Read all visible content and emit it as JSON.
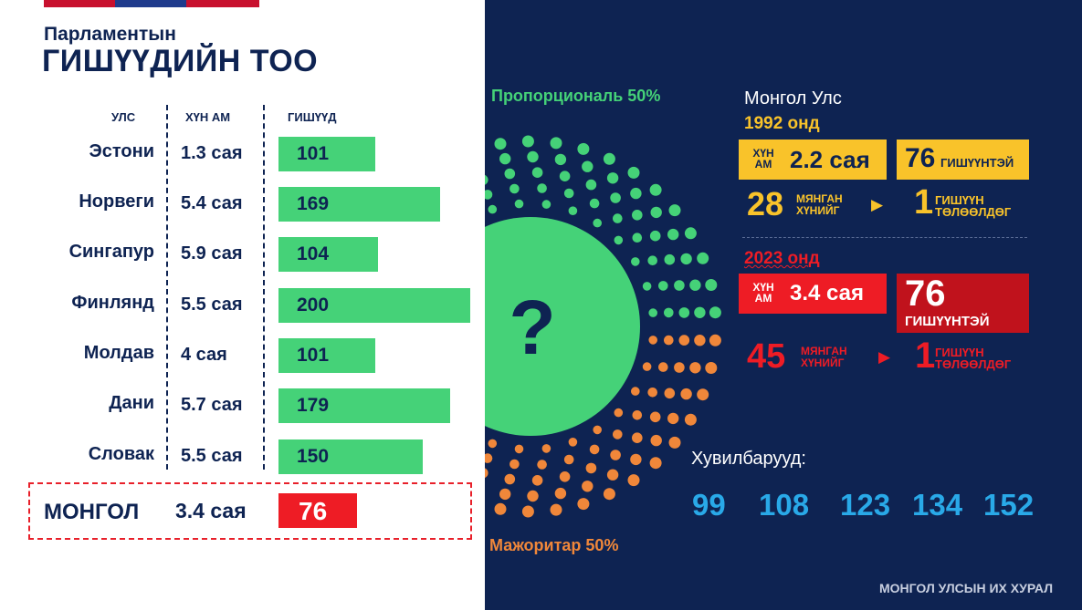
{
  "header": {
    "title_small": "Парламентын",
    "title_big": "ГИШҮҮДИЙН ТОО"
  },
  "table": {
    "col_country": "УЛС",
    "col_population": "ХҮН АМ",
    "col_members": "ГИШҮҮД"
  },
  "chart_data": {
    "type": "bar",
    "title": "Парламентын ГИШҮҮДИЙН ТОО",
    "categories": [
      "Эстони",
      "Норвеги",
      "Сингапур",
      "Финлянд",
      "Молдав",
      "Дани",
      "Словак"
    ],
    "population_labels": [
      "1.3 сая",
      "5.4 сая",
      "5.9 сая",
      "5.5 сая",
      "4 сая",
      "5.7 сая",
      "5.5 сая"
    ],
    "values": [
      101,
      169,
      104,
      200,
      101,
      179,
      150
    ],
    "xlim": [
      0,
      200
    ],
    "orientation": "horizontal",
    "bar_color": "#45d278",
    "highlight": {
      "category": "МОНГОЛ",
      "population_label": "3.4 сая",
      "value": 76,
      "color": "#ee1c25"
    }
  },
  "diagram": {
    "label_top": "Пропорциональ 50%",
    "label_bottom": "Мажоритар 50%",
    "center_symbol": "?",
    "green": "#45d278",
    "orange": "#f0873a"
  },
  "info": {
    "country_title": "Монгол Улс",
    "y1992": {
      "year_label": "1992 онд",
      "pop_label": "ХҮН АМ",
      "pop_value": "2.2 сая",
      "members_number": "76",
      "members_word": "ГИШҮҮНТЭЙ",
      "ratio_big": "28",
      "ratio_small_1": "МЯНГАН",
      "ratio_small_2": "ХҮНИЙГ",
      "rep_big": "1",
      "rep_small_1": "ГИШҮҮН",
      "rep_small_2": "ТӨЛӨӨЛДӨГ"
    },
    "y2023": {
      "year_label": "2023 онд",
      "pop_label": "ХҮН АМ",
      "pop_value": "3.4 сая",
      "members_number": "76",
      "members_word": "ГИШҮҮНТЭЙ",
      "ratio_big": "45",
      "ratio_small_1": "МЯНГАН",
      "ratio_small_2": "ХҮНИЙГ",
      "rep_big": "1",
      "rep_small_1": "ГИШҮҮН",
      "rep_small_2": "ТӨЛӨӨЛДӨГ"
    }
  },
  "variants": {
    "label": "Хувилбарууд:",
    "values": [
      "99",
      "108",
      "123",
      "134",
      "152"
    ]
  },
  "footer": {
    "org": "МОНГОЛ УЛСЫН ИХ ХУРАЛ"
  },
  "colors": {
    "navy": "#0e2352",
    "yellow": "#f9c32a",
    "red": "#ee1c25",
    "crimson": "#c0121c",
    "blue": "#29a9e8"
  }
}
